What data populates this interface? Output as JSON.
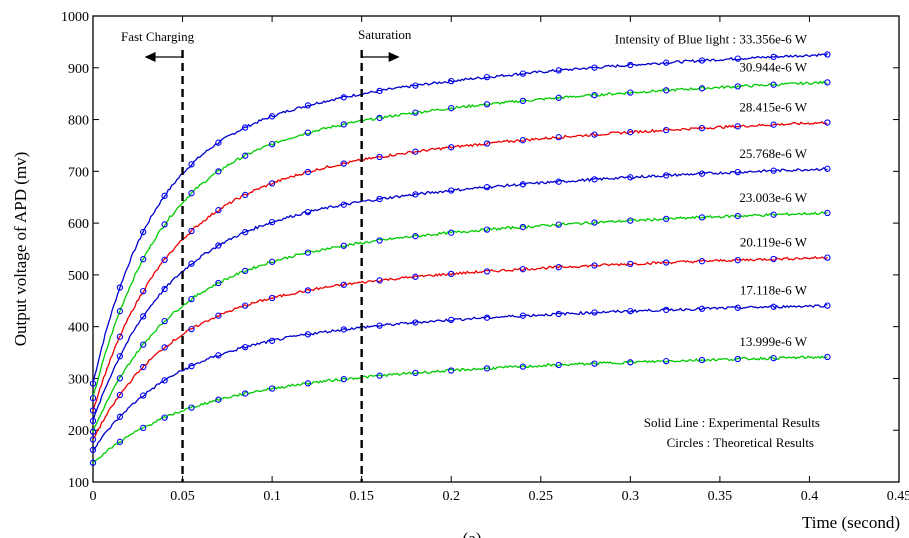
{
  "chart_data": {
    "type": "line",
    "title": "",
    "xlabel": "Time (second)",
    "ylabel": "Output voltage of APD (mv)",
    "xlim": [
      0,
      0.45
    ],
    "ylim": [
      100,
      1000
    ],
    "x_ticks": [
      0,
      0.05,
      0.1,
      0.15,
      0.2,
      0.25,
      0.3,
      0.35,
      0.4,
      0.45
    ],
    "x_tick_labels": [
      "0",
      "0.05",
      "0.1",
      "0.15",
      "0.2",
      "0.25",
      "0.3",
      "0.35",
      "0.4",
      "0.45"
    ],
    "y_ticks": [
      100,
      200,
      300,
      400,
      500,
      600,
      700,
      800,
      900,
      1000
    ],
    "y_tick_labels": [
      "100",
      "200",
      "300",
      "400",
      "500",
      "600",
      "700",
      "800",
      "900",
      "1000"
    ],
    "grid": false,
    "caption": "(a)",
    "annotations": {
      "fast_charging": {
        "label": "Fast Charging",
        "x": 0.05
      },
      "saturation": {
        "label": "Saturation",
        "x": 0.15
      },
      "legend_line1": "Solid Line  :  Experimental Results",
      "legend_line2": "Circles  :  Theoretical  Results"
    },
    "theoretical_x": [
      0,
      0.015,
      0.028,
      0.04,
      0.055,
      0.07,
      0.085,
      0.1,
      0.12,
      0.14,
      0.16,
      0.18,
      0.2,
      0.22,
      0.24,
      0.26,
      0.28,
      0.3,
      0.32,
      0.34,
      0.36,
      0.38,
      0.41
    ],
    "series": [
      {
        "label": "Intensity of Blue light : 33.356e-6 W",
        "color": "#0000cc",
        "start": 290,
        "a1": 458,
        "tau1": 0.032,
        "a2": 207,
        "tau2": 0.21
      },
      {
        "label": "30.944e-6 W",
        "color": "#00cc00",
        "start": 262,
        "a1": 445,
        "tau1": 0.035,
        "a2": 195,
        "tau2": 0.22
      },
      {
        "label": "28.415e-6 W",
        "color": "#ee0000",
        "start": 238,
        "a1": 400,
        "tau1": 0.038,
        "a2": 185,
        "tau2": 0.22
      },
      {
        "label": "25.768e-6 W",
        "color": "#0000cc",
        "start": 218,
        "a1": 350,
        "tau1": 0.038,
        "a2": 162,
        "tau2": 0.22
      },
      {
        "label": "23.003e-6 W",
        "color": "#00cc00",
        "start": 197,
        "a1": 300,
        "tau1": 0.04,
        "a2": 145,
        "tau2": 0.22
      },
      {
        "label": "20.119e-6 W",
        "color": "#ee0000",
        "start": 182,
        "a1": 250,
        "tau1": 0.04,
        "a2": 120,
        "tau2": 0.22
      },
      {
        "label": "17.118e-6 W",
        "color": "#0000cc",
        "start": 162,
        "a1": 190,
        "tau1": 0.042,
        "a2": 105,
        "tau2": 0.22
      },
      {
        "label": "13.999e-6 W",
        "color": "#00cc00",
        "start": 137,
        "a1": 120,
        "tau1": 0.045,
        "a2": 100,
        "tau2": 0.22
      }
    ]
  }
}
